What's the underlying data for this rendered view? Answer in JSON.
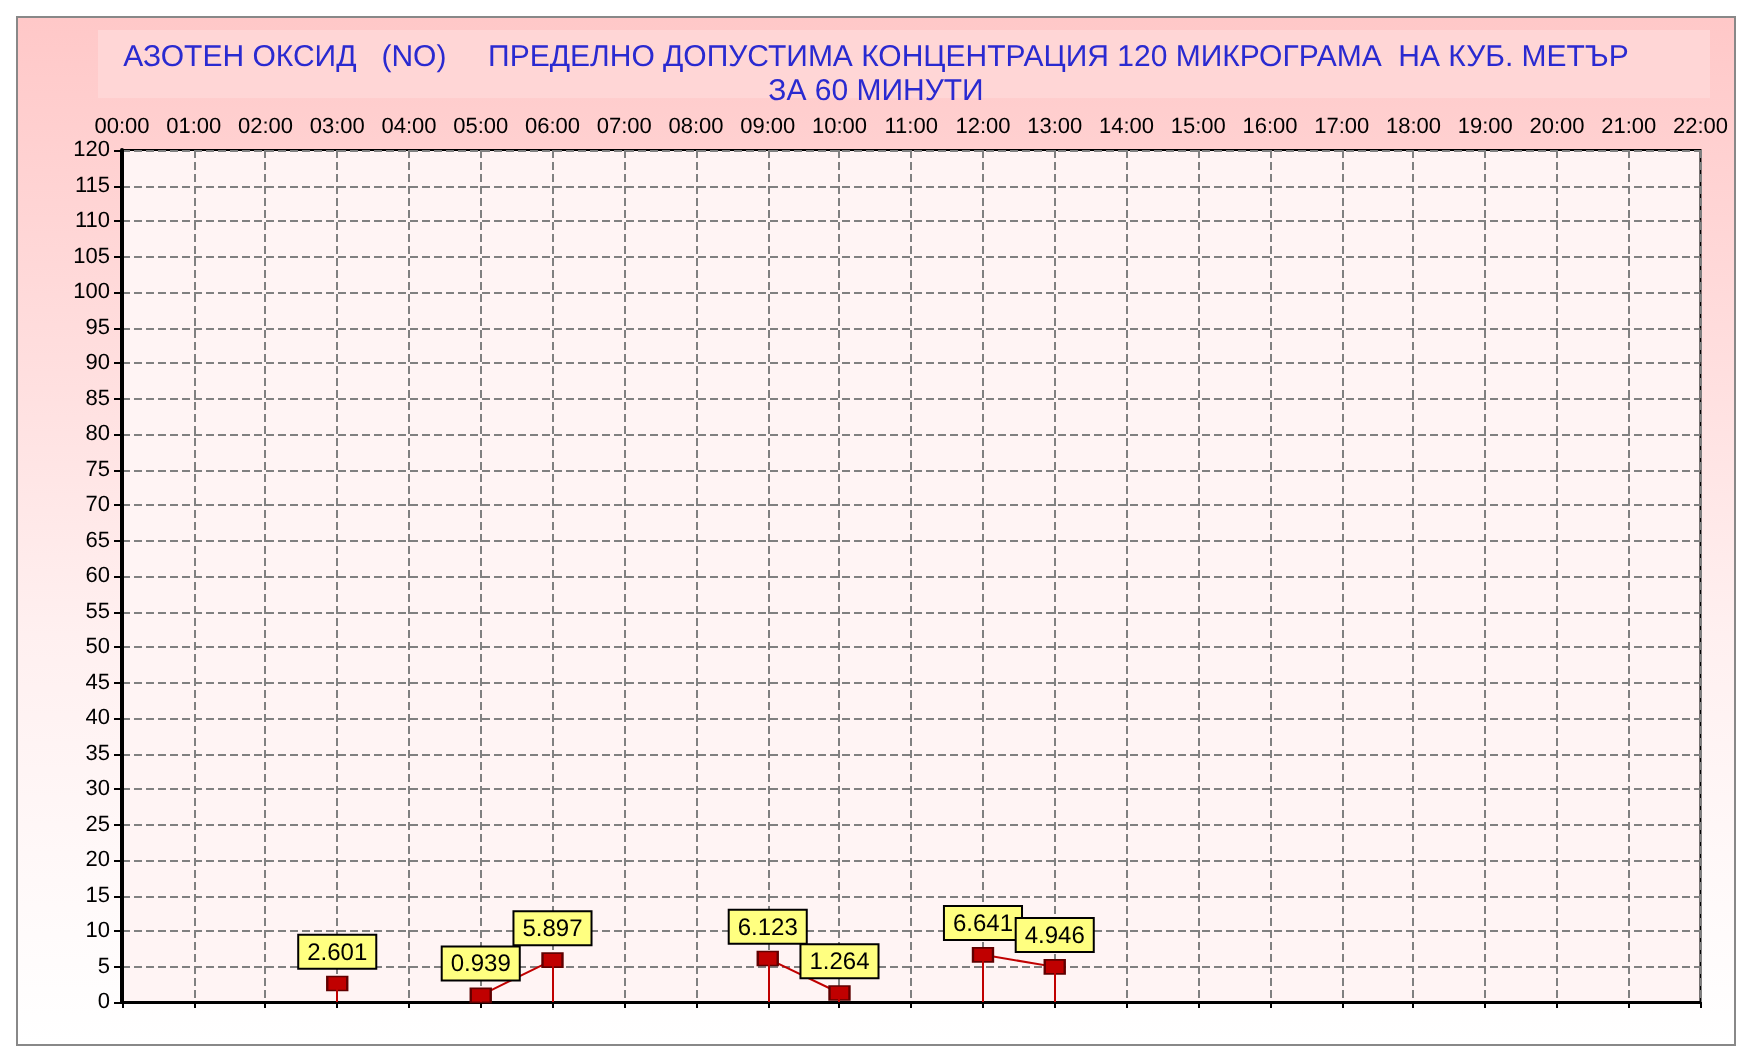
{
  "chart_data": {
    "type": "line",
    "title": "АЗОТЕН ОКСИД   (NO)     ПРЕДЕЛНО ДОПУСТИМА КОНЦЕНТРАЦИЯ 120 МИКРОГРАМА  НА КУБ. МЕТЪР\nЗА 60 МИНУТИ",
    "x": [
      3,
      4,
      5,
      6,
      7,
      8,
      9,
      10,
      11,
      12,
      13
    ],
    "series": [
      {
        "color": "#c00000",
        "values": [
          2.601,
          null,
          0.939,
          5.897,
          null,
          null,
          6.123,
          1.264,
          null,
          6.641,
          4.946
        ]
      }
    ],
    "xlim": [
      0,
      22
    ],
    "xticks": [
      {
        "value": 0,
        "label": "00:00"
      },
      {
        "value": 1,
        "label": "01:00"
      },
      {
        "value": 2,
        "label": "02:00"
      },
      {
        "value": 3,
        "label": "03:00"
      },
      {
        "value": 4,
        "label": "04:00"
      },
      {
        "value": 5,
        "label": "05:00"
      },
      {
        "value": 6,
        "label": "06:00"
      },
      {
        "value": 7,
        "label": "07:00"
      },
      {
        "value": 8,
        "label": "08:00"
      },
      {
        "value": 9,
        "label": "09:00"
      },
      {
        "value": 10,
        "label": "10:00"
      },
      {
        "value": 11,
        "label": "11:00"
      },
      {
        "value": 12,
        "label": "12:00"
      },
      {
        "value": 13,
        "label": "13:00"
      },
      {
        "value": 14,
        "label": "14:00"
      },
      {
        "value": 15,
        "label": "15:00"
      },
      {
        "value": 16,
        "label": "16:00"
      },
      {
        "value": 17,
        "label": "17:00"
      },
      {
        "value": 18,
        "label": "18:00"
      },
      {
        "value": 19,
        "label": "19:00"
      },
      {
        "value": 20,
        "label": "20:00"
      },
      {
        "value": 21,
        "label": "21:00"
      },
      {
        "value": 22,
        "label": "22:00"
      }
    ],
    "ylim": [
      0,
      120
    ],
    "yticks": [
      0,
      5,
      10,
      15,
      20,
      25,
      30,
      35,
      40,
      45,
      50,
      55,
      60,
      65,
      70,
      75,
      80,
      85,
      90,
      95,
      100,
      105,
      110,
      115,
      120
    ],
    "grid": true,
    "marker": "square",
    "line_style": "solid",
    "data_labels": true
  }
}
